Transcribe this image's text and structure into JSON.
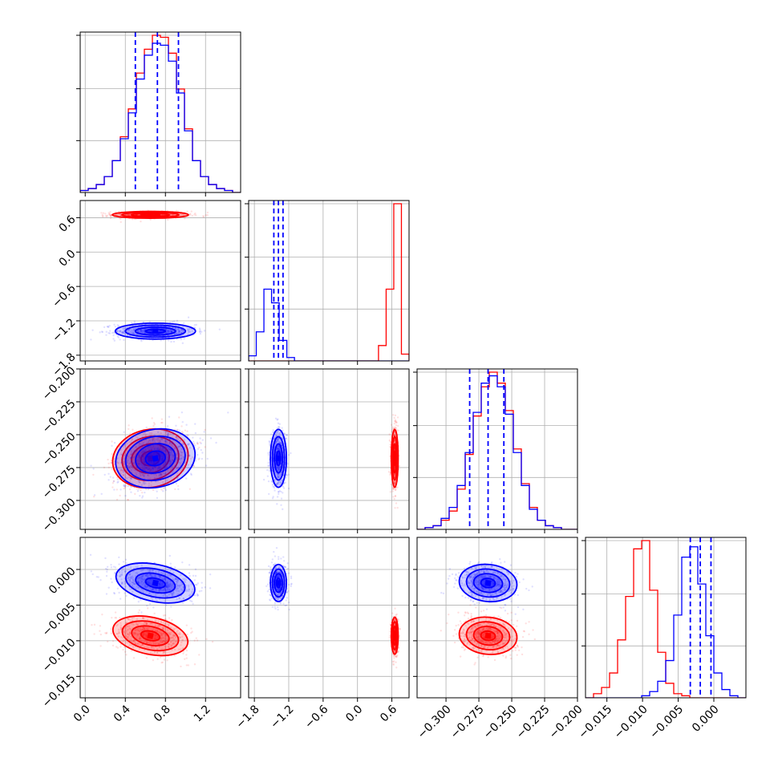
{
  "chart_data": {
    "type": "corner-plot",
    "grid": true,
    "colors": {
      "series_a": "#ff0000",
      "series_b": "#0000ff",
      "grid": "#b0b0b0"
    },
    "parameters": [
      {
        "range": [
          -0.05,
          1.55
        ],
        "ticks": [
          0.0,
          0.4,
          0.8,
          1.2
        ],
        "tick_labels": [
          "0.0",
          "0.4",
          "0.8",
          "1.2"
        ]
      },
      {
        "range": [
          -1.9,
          0.9
        ],
        "ticks": [
          -1.8,
          -1.2,
          -0.6,
          0.0,
          0.6
        ],
        "tick_labels": [
          "−1.8",
          "−1.2",
          "−0.6",
          "0.0",
          "0.6"
        ]
      },
      {
        "range": [
          -0.322,
          -0.2
        ],
        "ticks": [
          -0.3,
          -0.275,
          -0.25,
          -0.225,
          -0.2
        ],
        "tick_labels": [
          "−0.300",
          "−0.275",
          "−0.250",
          "−0.225",
          "−0.200"
        ]
      },
      {
        "range": [
          -0.018,
          0.0045
        ],
        "ticks": [
          -0.015,
          -0.01,
          -0.005,
          0.0
        ],
        "tick_labels": [
          "−0.015",
          "−0.010",
          "−0.005",
          "0.000"
        ]
      }
    ],
    "series": [
      {
        "color": "#ff0000",
        "mean": [
          0.65,
          0.65,
          -0.268,
          -0.0093
        ],
        "std": [
          0.19,
          0.03,
          0.011,
          0.0013
        ],
        "hist": {
          "0": {
            "edges": [
              -0.05,
              1.55
            ],
            "counts": [
              1,
              2,
              4,
              8,
              16,
              28,
              42,
              60,
              72,
              79,
              78,
              70,
              52,
              32,
              16,
              8,
              4,
              2,
              1,
              0
            ]
          },
          "1": {
            "edges": [
              -1.9,
              0.9
            ],
            "counts": [
              0,
              0,
              0,
              0,
              0,
              0,
              0,
              0,
              0,
              0,
              0,
              0,
              0,
              0,
              0,
              0,
              0,
              9,
              42,
              92,
              4
            ]
          },
          "2": {
            "edges": [
              -0.322,
              -0.2
            ],
            "counts": [
              0,
              1,
              2,
              5,
              10,
              22,
              41,
              62,
              78,
              86,
              80,
              65,
              44,
              25,
              12,
              5,
              2,
              1,
              0,
              0
            ]
          },
          "3": {
            "edges": [
              -0.018,
              0.0045
            ],
            "counts": [
              0,
              2,
              5,
              12,
              28,
              49,
              72,
              76,
              52,
              22,
              7,
              2,
              1,
              0,
              0,
              0,
              0,
              0,
              0,
              0
            ]
          }
        }
      },
      {
        "color": "#0000ff",
        "mean": [
          0.7,
          -1.38,
          -0.268,
          -0.0019
        ],
        "std": [
          0.2,
          0.07,
          0.011,
          0.0013
        ],
        "hist": {
          "0": {
            "edges": [
              -0.05,
              1.55
            ],
            "counts": [
              1,
              2,
              4,
              8,
              16,
              27,
              40,
              57,
              69,
              75,
              74,
              66,
              50,
              31,
              16,
              8,
              4,
              2,
              1,
              0
            ]
          },
          "1": {
            "edges": [
              -1.9,
              0.9
            ],
            "counts": [
              3,
              17,
              42,
              34,
              12,
              2,
              0,
              0,
              0,
              0,
              0,
              0,
              0,
              0,
              0,
              0,
              0,
              0,
              0,
              0,
              0
            ]
          },
          "2": {
            "edges": [
              -0.322,
              -0.2
            ],
            "counts": [
              0,
              1,
              2,
              6,
              12,
              24,
              42,
              64,
              80,
              84,
              78,
              63,
              42,
              24,
              11,
              5,
              2,
              1,
              0,
              0
            ]
          },
          "3": {
            "edges": [
              -0.018,
              0.0045
            ],
            "counts": [
              0,
              0,
              0,
              0,
              0,
              0,
              0,
              1,
              3,
              8,
              18,
              40,
              68,
              73,
              55,
              30,
              12,
              4,
              1,
              0
            ]
          }
        }
      }
    ],
    "quantile_lines": {
      "color": "#0000ff",
      "0": [
        0.5,
        0.72,
        0.93
      ],
      "1": [
        -1.46,
        -1.38,
        -1.3
      ],
      "2": [
        -0.282,
        -0.268,
        -0.256
      ],
      "3": [
        -0.0033,
        -0.0019,
        -0.0004
      ]
    }
  }
}
